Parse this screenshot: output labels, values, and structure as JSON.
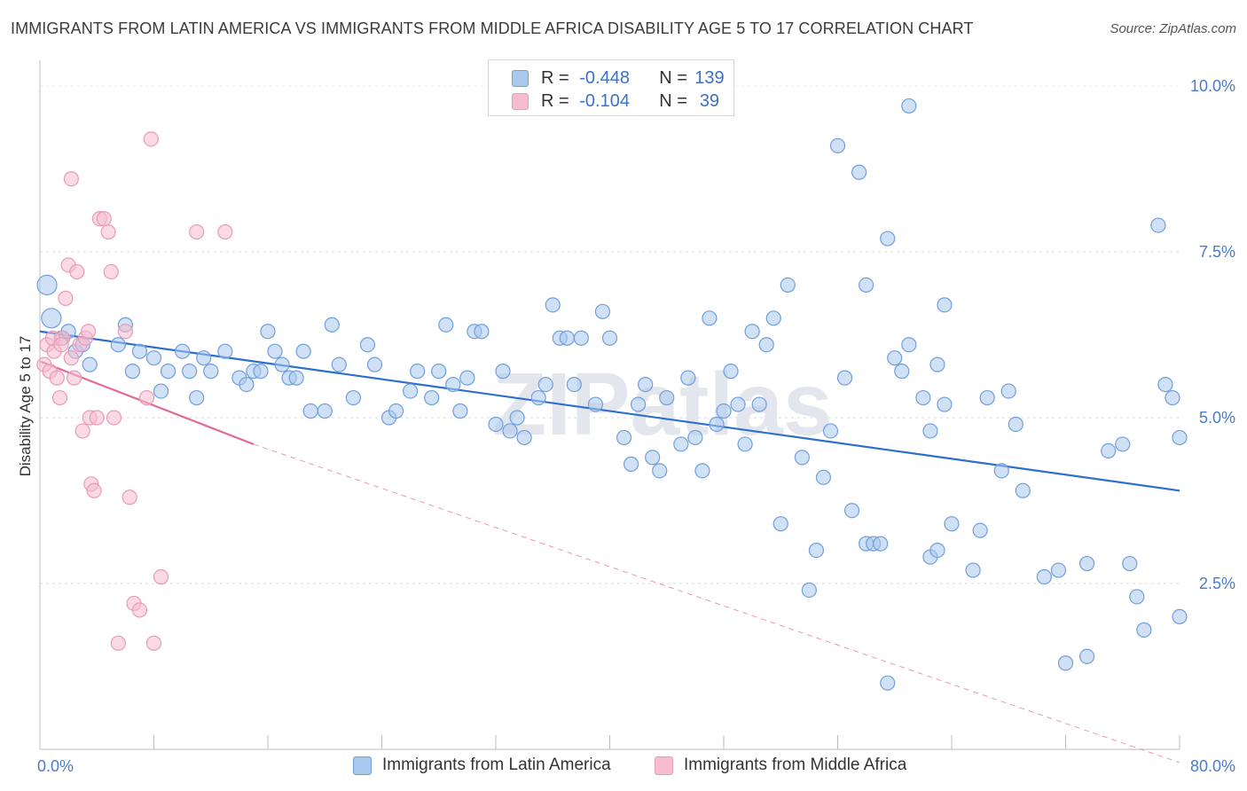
{
  "title": "IMMIGRANTS FROM LATIN AMERICA VS IMMIGRANTS FROM MIDDLE AFRICA DISABILITY AGE 5 TO 17 CORRELATION CHART",
  "source": "Source: ZipAtlas.com",
  "watermark": "ZIPatlas",
  "legend": {
    "rows": [
      {
        "r_label": "R =",
        "r_value": "-0.448",
        "n_label": "N =",
        "n_value": "139",
        "color": "#a9c8ee"
      },
      {
        "r_label": "R =",
        "r_value": "-0.104",
        "n_label": "N =",
        "n_value": "39",
        "color": "#f7bcd0"
      }
    ]
  },
  "bottom_legend": [
    {
      "label": "Immigrants from Latin America",
      "color": "#a9c8ee"
    },
    {
      "label": "Immigrants from Middle Africa",
      "color": "#f7bcd0"
    }
  ],
  "chart_data": {
    "type": "scatter",
    "ylabel": "Disability Age 5 to 17",
    "xlabel": "",
    "xlim": [
      0,
      80
    ],
    "ylim": [
      0,
      10.0
    ],
    "x_tick_labels": [
      "0.0%",
      "80.0%"
    ],
    "y_ticks": [
      {
        "value": 2.5,
        "label": "2.5%"
      },
      {
        "value": 5.0,
        "label": "5.0%"
      },
      {
        "value": 7.5,
        "label": "7.5%"
      },
      {
        "value": 10.0,
        "label": "10.0%"
      }
    ],
    "grid": "horizontal dashed",
    "series": [
      {
        "name": "Immigrants from Latin America",
        "color": "#6f9fdc",
        "fill": "#a9c8ee",
        "trend": {
          "x": [
            0,
            80
          ],
          "y": [
            6.3,
            3.9
          ],
          "color": "#2d6fcc"
        },
        "points": [
          [
            0.5,
            7.0
          ],
          [
            0.8,
            6.5
          ],
          [
            1.5,
            6.2
          ],
          [
            2.0,
            6.3
          ],
          [
            2.5,
            6.0
          ],
          [
            3.0,
            6.1
          ],
          [
            3.5,
            5.8
          ],
          [
            5.5,
            6.1
          ],
          [
            6.0,
            6.4
          ],
          [
            6.5,
            5.7
          ],
          [
            7.0,
            6.0
          ],
          [
            8.0,
            5.9
          ],
          [
            8.5,
            5.4
          ],
          [
            9.0,
            5.7
          ],
          [
            10.0,
            6.0
          ],
          [
            10.5,
            5.7
          ],
          [
            11.0,
            5.3
          ],
          [
            11.5,
            5.9
          ],
          [
            12.0,
            5.7
          ],
          [
            13.0,
            6.0
          ],
          [
            14.0,
            5.6
          ],
          [
            14.5,
            5.5
          ],
          [
            15.0,
            5.7
          ],
          [
            15.5,
            5.7
          ],
          [
            16.0,
            6.3
          ],
          [
            16.5,
            6.0
          ],
          [
            17.0,
            5.8
          ],
          [
            17.5,
            5.6
          ],
          [
            18.0,
            5.6
          ],
          [
            18.5,
            6.0
          ],
          [
            19.0,
            5.1
          ],
          [
            20.0,
            5.1
          ],
          [
            20.5,
            6.4
          ],
          [
            21.0,
            5.8
          ],
          [
            22.0,
            5.3
          ],
          [
            23.0,
            6.1
          ],
          [
            23.5,
            5.8
          ],
          [
            24.5,
            5.0
          ],
          [
            25.0,
            5.1
          ],
          [
            26.0,
            5.4
          ],
          [
            26.5,
            5.7
          ],
          [
            27.5,
            5.3
          ],
          [
            28.0,
            5.7
          ],
          [
            28.5,
            6.4
          ],
          [
            29.0,
            5.5
          ],
          [
            29.5,
            5.1
          ],
          [
            30.0,
            5.6
          ],
          [
            30.5,
            6.3
          ],
          [
            31.0,
            6.3
          ],
          [
            32.0,
            4.9
          ],
          [
            32.5,
            5.7
          ],
          [
            33.0,
            4.8
          ],
          [
            33.5,
            5.0
          ],
          [
            34.0,
            4.7
          ],
          [
            35.0,
            5.3
          ],
          [
            35.5,
            5.5
          ],
          [
            36.0,
            6.7
          ],
          [
            36.5,
            6.2
          ],
          [
            37.0,
            6.2
          ],
          [
            37.5,
            5.5
          ],
          [
            38.0,
            6.2
          ],
          [
            39.0,
            5.2
          ],
          [
            39.5,
            6.6
          ],
          [
            40.0,
            6.2
          ],
          [
            41.0,
            4.7
          ],
          [
            41.5,
            4.3
          ],
          [
            42.0,
            5.2
          ],
          [
            42.5,
            5.5
          ],
          [
            43.0,
            4.4
          ],
          [
            43.5,
            4.2
          ],
          [
            44.0,
            5.3
          ],
          [
            45.0,
            4.6
          ],
          [
            45.5,
            5.6
          ],
          [
            46.0,
            4.7
          ],
          [
            46.5,
            4.2
          ],
          [
            47.0,
            6.5
          ],
          [
            47.5,
            4.9
          ],
          [
            48.0,
            5.1
          ],
          [
            48.5,
            5.7
          ],
          [
            49.0,
            5.2
          ],
          [
            49.5,
            4.6
          ],
          [
            50.0,
            6.3
          ],
          [
            50.5,
            5.2
          ],
          [
            51.0,
            6.1
          ],
          [
            51.5,
            6.5
          ],
          [
            52.5,
            7.0
          ],
          [
            52.0,
            3.4
          ],
          [
            53.5,
            4.4
          ],
          [
            54.0,
            2.4
          ],
          [
            54.5,
            3.0
          ],
          [
            55.5,
            4.8
          ],
          [
            56.0,
            9.1
          ],
          [
            56.5,
            5.6
          ],
          [
            57.0,
            3.6
          ],
          [
            57.5,
            8.7
          ],
          [
            58.0,
            3.1
          ],
          [
            58.5,
            3.1
          ],
          [
            59.0,
            3.1
          ],
          [
            59.5,
            7.7
          ],
          [
            60.5,
            5.7
          ],
          [
            61.0,
            6.1
          ],
          [
            62.0,
            5.3
          ],
          [
            62.5,
            2.9
          ],
          [
            63.0,
            3.0
          ],
          [
            63.5,
            5.2
          ],
          [
            64.0,
            3.4
          ],
          [
            65.5,
            2.7
          ],
          [
            66.0,
            3.3
          ],
          [
            67.5,
            4.2
          ],
          [
            68.0,
            5.4
          ],
          [
            68.5,
            4.9
          ],
          [
            69.0,
            3.9
          ],
          [
            70.5,
            2.6
          ],
          [
            71.5,
            2.7
          ],
          [
            72.0,
            1.3
          ],
          [
            73.5,
            2.8
          ],
          [
            75.0,
            4.5
          ],
          [
            76.5,
            2.8
          ],
          [
            77.5,
            1.8
          ],
          [
            78.5,
            7.9
          ],
          [
            79.0,
            5.5
          ],
          [
            80.0,
            4.7
          ],
          [
            62.5,
            4.8
          ],
          [
            66.5,
            5.3
          ],
          [
            79.5,
            5.3
          ],
          [
            76.0,
            4.6
          ],
          [
            63.0,
            5.8
          ],
          [
            59.5,
            1.0
          ],
          [
            61.0,
            9.7
          ],
          [
            63.5,
            6.7
          ],
          [
            55.0,
            4.1
          ],
          [
            73.5,
            1.4
          ],
          [
            77.0,
            2.3
          ],
          [
            58.0,
            7.0
          ],
          [
            80.0,
            2.0
          ],
          [
            60.0,
            5.9
          ]
        ]
      },
      {
        "name": "Immigrants from Middle Africa",
        "color": "#e99ab6",
        "fill": "#f7bcd0",
        "trend": {
          "x": [
            0,
            15
          ],
          "y": [
            5.85,
            4.6
          ],
          "color": "#e26a96"
        },
        "trend_extension": {
          "x": [
            15,
            80
          ],
          "y": [
            4.6,
            -0.2
          ]
        },
        "points": [
          [
            0.3,
            5.8
          ],
          [
            0.5,
            6.1
          ],
          [
            0.7,
            5.7
          ],
          [
            1.0,
            6.0
          ],
          [
            1.2,
            5.6
          ],
          [
            1.4,
            5.3
          ],
          [
            1.6,
            6.2
          ],
          [
            1.8,
            6.8
          ],
          [
            2.0,
            7.3
          ],
          [
            2.2,
            8.6
          ],
          [
            2.4,
            5.6
          ],
          [
            2.6,
            7.2
          ],
          [
            2.8,
            6.1
          ],
          [
            3.0,
            4.8
          ],
          [
            3.2,
            6.2
          ],
          [
            3.4,
            6.3
          ],
          [
            3.5,
            5.0
          ],
          [
            3.6,
            4.0
          ],
          [
            3.8,
            3.9
          ],
          [
            4.0,
            5.0
          ],
          [
            4.2,
            8.0
          ],
          [
            4.5,
            8.0
          ],
          [
            4.8,
            7.8
          ],
          [
            5.0,
            7.2
          ],
          [
            5.2,
            5.0
          ],
          [
            5.5,
            1.6
          ],
          [
            6.0,
            6.3
          ],
          [
            6.3,
            3.8
          ],
          [
            6.6,
            2.2
          ],
          [
            7.0,
            2.1
          ],
          [
            7.5,
            5.3
          ],
          [
            7.8,
            9.2
          ],
          [
            8.0,
            1.6
          ],
          [
            8.5,
            2.6
          ],
          [
            11.0,
            7.8
          ],
          [
            13.0,
            7.8
          ],
          [
            0.9,
            6.2
          ],
          [
            1.5,
            6.1
          ],
          [
            2.2,
            5.9
          ]
        ]
      }
    ]
  }
}
